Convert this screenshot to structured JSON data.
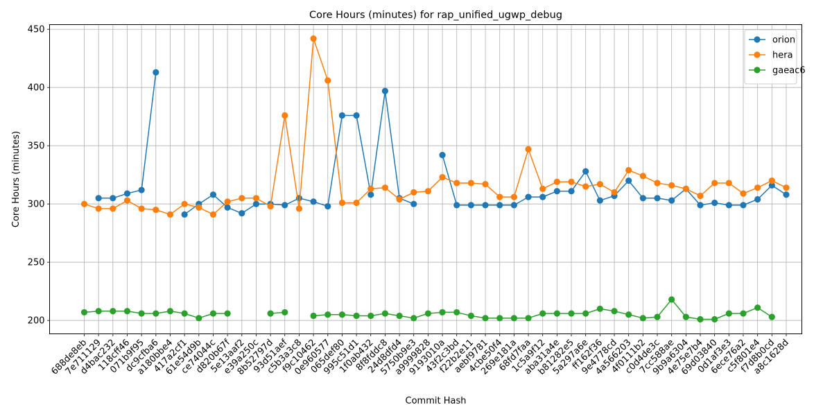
{
  "chart_data": {
    "type": "line",
    "title": "Core Hours (minutes) for rap_unified_ugwp_debug",
    "xlabel": "Commit Hash",
    "ylabel": "Core Hours (minutes)",
    "ylim": [
      188.5,
      454
    ],
    "yticks": [
      200,
      250,
      300,
      350,
      400,
      450
    ],
    "grid": true,
    "legend_position": "top-right",
    "categories": [
      "688de8eb",
      "7e711129",
      "d4bac232",
      "118cff46",
      "071b9f95",
      "dc9cfba6",
      "a180bbe4",
      "417a2cf1",
      "61e54d9b",
      "ce74044c",
      "d820b67f",
      "5e13aaf2",
      "e39a250c",
      "8b52797d",
      "93d51aef",
      "c5b3a3c8",
      "f9c10462",
      "0e960577",
      "065def80",
      "995c51d1",
      "1f0ab432",
      "8f8fddc8",
      "24d8dfd4",
      "5750b9e3",
      "a9999828",
      "9193010a",
      "43f2c3bd",
      "f22b2e11",
      "aebf9781",
      "4cbe50f4",
      "269e181a",
      "68fd7faa",
      "1c5a9f12",
      "aba31a4e",
      "b81282e5",
      "5a297a6e",
      "ff162f36",
      "9e4778cd",
      "4a566203",
      "4f0111b2",
      "c0d4de3c",
      "7cc588ae",
      "9b9a6304",
      "4e75e7b4",
      "69d03840",
      "0d1af3e3",
      "6ece76a2",
      "c5f801e4",
      "f7d8b0cd",
      "a8c1628d"
    ],
    "series": [
      {
        "name": "orion",
        "color": "#1f77b4",
        "values": [
          null,
          305,
          305,
          309,
          312,
          413,
          null,
          291,
          300,
          308,
          297,
          292,
          300,
          300,
          299,
          305,
          302,
          298,
          376,
          376,
          308,
          397,
          305,
          300,
          null,
          342,
          299,
          299,
          299,
          299,
          299,
          306,
          306,
          311,
          311,
          328,
          303,
          307,
          320,
          305,
          305,
          303,
          313,
          299,
          301,
          299,
          299,
          304,
          316,
          308
        ]
      },
      {
        "name": "hera",
        "color": "#ff7f0e",
        "values": [
          300,
          296,
          296,
          303,
          296,
          295,
          291,
          300,
          297,
          291,
          302,
          305,
          305,
          298,
          376,
          296,
          442,
          406,
          301,
          301,
          313,
          314,
          304,
          310,
          311,
          323,
          318,
          318,
          317,
          306,
          306,
          347,
          313,
          319,
          319,
          315,
          317,
          310,
          329,
          324,
          318,
          316,
          313,
          307,
          318,
          318,
          309,
          314,
          320,
          314
        ]
      },
      {
        "name": "gaeac6",
        "color": "#2ca02c",
        "values": [
          207,
          208,
          208,
          208,
          206,
          206,
          208,
          206,
          202,
          206,
          206,
          null,
          null,
          206,
          207,
          null,
          204,
          205,
          205,
          204,
          204,
          206,
          204,
          202,
          206,
          207,
          207,
          204,
          202,
          202,
          202,
          202,
          206,
          206,
          206,
          206,
          210,
          208,
          205,
          202,
          203,
          218,
          203,
          201,
          201,
          206,
          206,
          211,
          203,
          null
        ]
      }
    ]
  }
}
